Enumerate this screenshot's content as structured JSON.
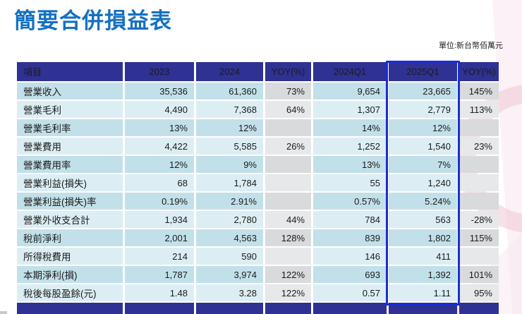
{
  "slide": {
    "title": "簡要合併損益表",
    "unit_note": "單位:新台幣佰萬元"
  },
  "colors": {
    "title_blue": "#1470c2",
    "header_navy": "#2f3193",
    "highlight_blue": "#1b2cd8",
    "row_blue_dark": "#c2e0e9",
    "row_blue_light": "#dceef4",
    "yoy_gray_dark": "#d8dadb",
    "yoy_gray_light": "#e6e8e9",
    "deco_pink": "#f0c3d1"
  },
  "chart_data": {
    "type": "table",
    "title": "簡要合併損益表",
    "unit": "新台幣佰萬元",
    "columns": [
      "項目",
      "2023",
      "2024",
      "YOY(%)",
      "2024Q1",
      "2025Q1",
      "YOY(%)"
    ],
    "highlighted_column": "2025Q1",
    "rows": [
      [
        "營業收入",
        "35,536",
        "61,360",
        "73%",
        "9,654",
        "23,665",
        "145%"
      ],
      [
        "營業毛利",
        "4,490",
        "7,368",
        "64%",
        "1,307",
        "2,779",
        "113%"
      ],
      [
        "營業毛利率",
        "13%",
        "12%",
        "",
        "14%",
        "12%",
        ""
      ],
      [
        "營業費用",
        "4,422",
        "5,585",
        "26%",
        "1,252",
        "1,540",
        "23%"
      ],
      [
        "營業費用率",
        "12%",
        "9%",
        "",
        "13%",
        "7%",
        ""
      ],
      [
        "營業利益(損失)",
        "68",
        "1,784",
        "",
        "55",
        "1,240",
        ""
      ],
      [
        "營業利益(損失)率",
        "0.19%",
        "2.91%",
        "",
        "0.57%",
        "5.24%",
        ""
      ],
      [
        "營業外收支合計",
        "1,934",
        "2,780",
        "44%",
        "784",
        "563",
        "-28%"
      ],
      [
        "稅前淨利",
        "2,001",
        "4,563",
        "128%",
        "839",
        "1,802",
        "115%"
      ],
      [
        "所得稅費用",
        "214",
        "590",
        "",
        "146",
        "411",
        ""
      ],
      [
        "本期淨利(損)",
        "1,787",
        "3,974",
        "122%",
        "693",
        "1,392",
        "101%"
      ],
      [
        "稅後每股盈餘(元)",
        "1.48",
        "3.28",
        "122%",
        "0.57",
        "1.11",
        "95%"
      ]
    ]
  }
}
